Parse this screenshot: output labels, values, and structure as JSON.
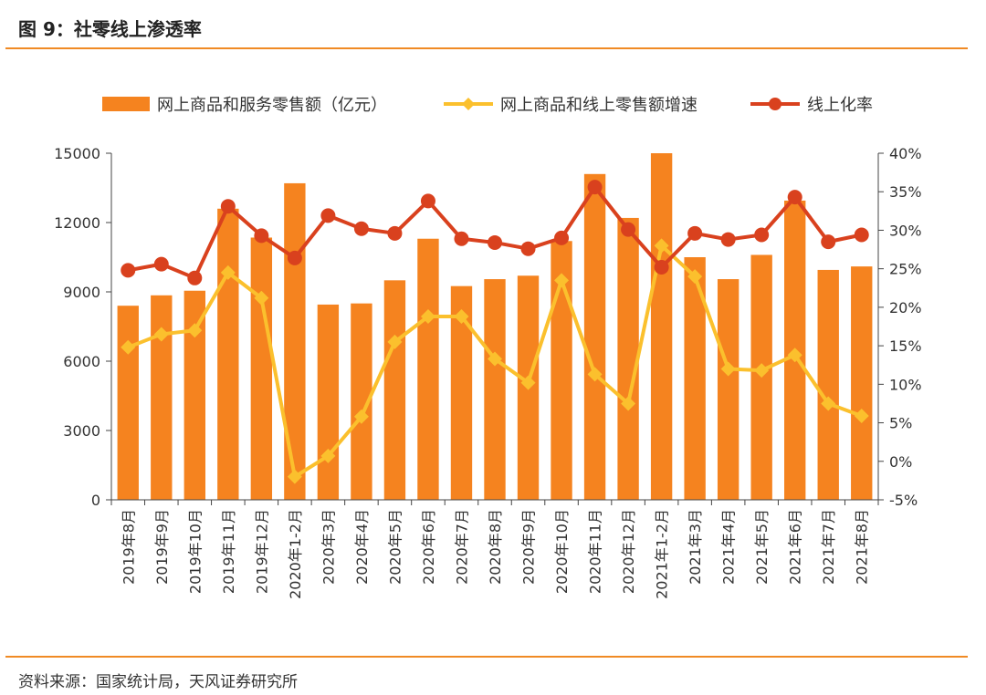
{
  "figure": {
    "title": "图 9：社零线上渗透率",
    "source": "资料来源：国家统计局，天风证券研究所"
  },
  "colors": {
    "bar": "#f5831f",
    "growth_line": "#fbc02d",
    "rate_line": "#d9411e",
    "rule": "#f08a24"
  },
  "chart_data": {
    "type": "bar",
    "categories": [
      "2019年8月",
      "2019年9月",
      "2019年10月",
      "2019年11月",
      "2019年12月",
      "2020年1-2月",
      "2020年3月",
      "2020年4月",
      "2020年5月",
      "2020年6月",
      "2020年7月",
      "2020年8月",
      "2020年9月",
      "2020年10月",
      "2020年11月",
      "2020年12月",
      "2021年1-2月",
      "2021年3月",
      "2021年4月",
      "2021年5月",
      "2021年6月",
      "2021年7月",
      "2021年8月"
    ],
    "series": [
      {
        "name": "网上商品和服务零售额（亿元）",
        "type": "bar",
        "axis": "left",
        "values": [
          8400,
          8850,
          9050,
          12600,
          11350,
          13700,
          8450,
          8500,
          9500,
          11300,
          9250,
          9550,
          9700,
          11200,
          14100,
          12200,
          15000,
          10500,
          9550,
          10600,
          12950,
          9950,
          10100
        ]
      },
      {
        "name": "网上商品和线上零售额增速",
        "type": "line",
        "axis": "right",
        "marker": "diamond",
        "values": [
          14.8,
          16.5,
          17.0,
          24.5,
          21.2,
          -2.0,
          0.7,
          5.8,
          15.5,
          18.8,
          18.8,
          13.3,
          10.2,
          23.5,
          11.3,
          7.5,
          28.0,
          24.0,
          12.0,
          11.8,
          13.8,
          7.5,
          5.9
        ]
      },
      {
        "name": "线上化率",
        "type": "line",
        "axis": "right",
        "marker": "circle",
        "values": [
          24.8,
          25.6,
          23.8,
          33.1,
          29.3,
          26.4,
          31.9,
          30.2,
          29.6,
          33.8,
          28.9,
          28.4,
          27.6,
          29.0,
          35.6,
          30.1,
          25.2,
          29.6,
          28.8,
          29.4,
          34.3,
          28.5,
          29.4
        ]
      }
    ],
    "left_axis": {
      "ylim": [
        0,
        15000
      ],
      "ticks": [
        "0",
        "3000",
        "6000",
        "9000",
        "12000",
        "15000"
      ]
    },
    "right_axis": {
      "ylim": [
        -5,
        40
      ],
      "ticks": [
        "-5%",
        "0%",
        "5%",
        "10%",
        "15%",
        "20%",
        "25%",
        "30%",
        "35%",
        "40%"
      ]
    },
    "legend_position": "top",
    "grid": false
  }
}
